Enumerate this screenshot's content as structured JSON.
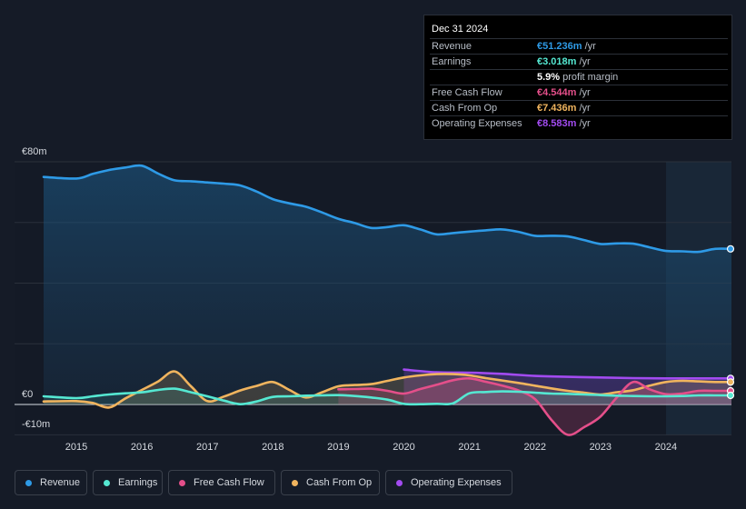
{
  "tooltip": {
    "date": "Dec 31 2024",
    "rows": [
      {
        "label": "Revenue",
        "value": "€51.236m",
        "unit": " /yr",
        "color": "#2e9ae6"
      },
      {
        "label": "Earnings",
        "value": "€3.018m",
        "unit": " /yr",
        "color": "#55e8d2"
      },
      {
        "label": "",
        "value": "5.9%",
        "unit": " profit margin",
        "color": "#ffffff"
      },
      {
        "label": "Free Cash Flow",
        "value": "€4.544m",
        "unit": " /yr",
        "color": "#e44f8a"
      },
      {
        "label": "Cash From Op",
        "value": "€7.436m",
        "unit": " /yr",
        "color": "#f0b45e"
      },
      {
        "label": "Operating Expenses",
        "value": "€8.583m",
        "unit": " /yr",
        "color": "#a24bf0"
      }
    ]
  },
  "legend": [
    {
      "label": "Revenue",
      "color": "#2e9ae6"
    },
    {
      "label": "Earnings",
      "color": "#55e8d2"
    },
    {
      "label": "Free Cash Flow",
      "color": "#e44f8a"
    },
    {
      "label": "Cash From Op",
      "color": "#f0b45e"
    },
    {
      "label": "Operating Expenses",
      "color": "#a24bf0"
    }
  ],
  "chart_data": {
    "type": "line",
    "title": "",
    "xlabel": "",
    "ylabel": "",
    "x_ticks": [
      "2015",
      "2016",
      "2017",
      "2018",
      "2019",
      "2020",
      "2021",
      "2022",
      "2023",
      "2024"
    ],
    "y_tick_labels": [
      "€80m",
      "€0",
      "-€10m"
    ],
    "ylim": [
      -10,
      80
    ],
    "xlim": [
      2014.5,
      2025.0
    ],
    "series": [
      {
        "name": "Revenue",
        "color": "#2e9ae6",
        "points": [
          [
            2014.5,
            75
          ],
          [
            2015,
            74.5
          ],
          [
            2015.25,
            76
          ],
          [
            2015.5,
            77.3
          ],
          [
            2015.75,
            78.1
          ],
          [
            2016,
            78.7
          ],
          [
            2016.25,
            76.1
          ],
          [
            2016.5,
            73.9
          ],
          [
            2016.75,
            73.6
          ],
          [
            2017,
            73.2
          ],
          [
            2017.25,
            72.8
          ],
          [
            2017.5,
            72.2
          ],
          [
            2017.75,
            70.2
          ],
          [
            2018,
            67.7
          ],
          [
            2018.25,
            66.3
          ],
          [
            2018.5,
            65.2
          ],
          [
            2018.75,
            63.3
          ],
          [
            2019,
            61.2
          ],
          [
            2019.25,
            59.8
          ],
          [
            2019.5,
            58.2
          ],
          [
            2019.75,
            58.5
          ],
          [
            2020,
            59.1
          ],
          [
            2020.25,
            57.7
          ],
          [
            2020.5,
            56.1
          ],
          [
            2020.75,
            56.5
          ],
          [
            2021,
            57
          ],
          [
            2021.25,
            57.4
          ],
          [
            2021.5,
            57.7
          ],
          [
            2021.75,
            56.9
          ],
          [
            2022,
            55.6
          ],
          [
            2022.25,
            55.6
          ],
          [
            2022.5,
            55.4
          ],
          [
            2022.75,
            54.2
          ],
          [
            2023,
            52.9
          ],
          [
            2023.25,
            53.1
          ],
          [
            2023.5,
            53
          ],
          [
            2023.75,
            51.8
          ],
          [
            2024,
            50.6
          ],
          [
            2024.25,
            50.5
          ],
          [
            2024.5,
            50.3
          ],
          [
            2024.75,
            51.3
          ],
          [
            2025,
            51.3
          ]
        ]
      },
      {
        "name": "Earnings",
        "color": "#55e8d2",
        "points": [
          [
            2014.5,
            2.7
          ],
          [
            2015,
            2.1
          ],
          [
            2015.25,
            2.7
          ],
          [
            2015.5,
            3.3
          ],
          [
            2015.75,
            3.7
          ],
          [
            2016,
            4
          ],
          [
            2016.25,
            4.8
          ],
          [
            2016.5,
            5.2
          ],
          [
            2016.75,
            4
          ],
          [
            2017,
            2.7
          ],
          [
            2017.25,
            1.3
          ],
          [
            2017.5,
            0.1
          ],
          [
            2017.75,
            1
          ],
          [
            2018,
            2.5
          ],
          [
            2018.25,
            2.7
          ],
          [
            2018.5,
            2.9
          ],
          [
            2018.75,
            3
          ],
          [
            2019,
            3.1
          ],
          [
            2019.25,
            2.8
          ],
          [
            2019.5,
            2.3
          ],
          [
            2019.75,
            1.6
          ],
          [
            2020,
            0.2
          ],
          [
            2020.25,
            0.1
          ],
          [
            2020.5,
            0.2
          ],
          [
            2020.75,
            0.4
          ],
          [
            2021,
            3.7
          ],
          [
            2021.25,
            4.1
          ],
          [
            2021.5,
            4.3
          ],
          [
            2021.75,
            4.2
          ],
          [
            2022,
            3.9
          ],
          [
            2022.25,
            3.6
          ],
          [
            2022.5,
            3.5
          ],
          [
            2022.75,
            3.3
          ],
          [
            2023,
            3.1
          ],
          [
            2023.25,
            2.9
          ],
          [
            2023.5,
            2.8
          ],
          [
            2023.75,
            2.7
          ],
          [
            2024,
            2.7
          ],
          [
            2024.25,
            2.8
          ],
          [
            2024.5,
            3
          ],
          [
            2024.75,
            3
          ],
          [
            2025,
            3
          ]
        ]
      },
      {
        "name": "Free Cash Flow",
        "color": "#e44f8a",
        "points": [
          [
            2019,
            5
          ],
          [
            2019.25,
            5.1
          ],
          [
            2019.5,
            5.2
          ],
          [
            2019.75,
            4.5
          ],
          [
            2020,
            3.6
          ],
          [
            2020.25,
            5.1
          ],
          [
            2020.5,
            6.5
          ],
          [
            2020.75,
            8
          ],
          [
            2021,
            8.6
          ],
          [
            2021.25,
            7.5
          ],
          [
            2021.5,
            6.2
          ],
          [
            2021.75,
            4.6
          ],
          [
            2022,
            1.8
          ],
          [
            2022.25,
            -5
          ],
          [
            2022.5,
            -10
          ],
          [
            2022.75,
            -7.5
          ],
          [
            2023,
            -4
          ],
          [
            2023.25,
            2.3
          ],
          [
            2023.5,
            7.4
          ],
          [
            2023.75,
            5
          ],
          [
            2024,
            3.4
          ],
          [
            2024.25,
            3.6
          ],
          [
            2024.5,
            4.5
          ],
          [
            2024.75,
            4.5
          ],
          [
            2025,
            4.5
          ]
        ]
      },
      {
        "name": "Cash From Op",
        "color": "#f0b45e",
        "points": [
          [
            2014.5,
            1
          ],
          [
            2015,
            1.1
          ],
          [
            2015.25,
            0.5
          ],
          [
            2015.5,
            -1
          ],
          [
            2015.75,
            2
          ],
          [
            2016,
            4.8
          ],
          [
            2016.25,
            7.6
          ],
          [
            2016.5,
            10.9
          ],
          [
            2016.75,
            6
          ],
          [
            2017,
            1.1
          ],
          [
            2017.25,
            2.6
          ],
          [
            2017.5,
            4.6
          ],
          [
            2017.75,
            6.1
          ],
          [
            2018,
            7.4
          ],
          [
            2018.25,
            4.8
          ],
          [
            2018.5,
            2.3
          ],
          [
            2018.75,
            4
          ],
          [
            2019,
            6
          ],
          [
            2019.25,
            6.4
          ],
          [
            2019.5,
            6.7
          ],
          [
            2019.75,
            7.8
          ],
          [
            2020,
            8.9
          ],
          [
            2020.25,
            9.6
          ],
          [
            2020.5,
            10
          ],
          [
            2020.75,
            10
          ],
          [
            2021,
            9.6
          ],
          [
            2021.25,
            8.7
          ],
          [
            2021.5,
            7.9
          ],
          [
            2021.75,
            7.1
          ],
          [
            2022,
            6.2
          ],
          [
            2022.25,
            5.3
          ],
          [
            2022.5,
            4.5
          ],
          [
            2022.75,
            3.9
          ],
          [
            2023,
            3.3
          ],
          [
            2023.25,
            4
          ],
          [
            2023.5,
            4.7
          ],
          [
            2023.75,
            6.2
          ],
          [
            2024,
            7.4
          ],
          [
            2024.25,
            7.8
          ],
          [
            2024.5,
            7.6
          ],
          [
            2024.75,
            7.4
          ],
          [
            2025,
            7.4
          ]
        ]
      },
      {
        "name": "Operating Expenses",
        "color": "#a24bf0",
        "points": [
          [
            2020,
            11.5
          ],
          [
            2020.5,
            10.6
          ],
          [
            2021,
            10.5
          ],
          [
            2021.5,
            10.1
          ],
          [
            2022,
            9.4
          ],
          [
            2022.5,
            9.1
          ],
          [
            2023,
            8.9
          ],
          [
            2023.5,
            8.7
          ],
          [
            2024,
            8.6
          ],
          [
            2024.5,
            8.6
          ],
          [
            2025,
            8.6
          ]
        ]
      }
    ]
  }
}
